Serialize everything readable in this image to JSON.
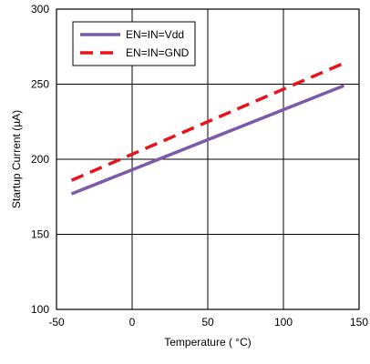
{
  "chart_data": {
    "type": "line",
    "title": "",
    "xlabel": "Temperature ( °C)",
    "ylabel": "Startup Current (µA)",
    "xlim": [
      -50,
      150
    ],
    "ylim": [
      100,
      300
    ],
    "x_ticks": [
      "-50",
      "0",
      "50",
      "100",
      "150"
    ],
    "y_ticks": [
      "100",
      "150",
      "200",
      "250",
      "300"
    ],
    "grid": true,
    "legend_position": "top-left",
    "series": [
      {
        "name": "EN=IN=Vdd",
        "color": "#7B5BA6",
        "style": "solid",
        "x": [
          -40,
          140
        ],
        "y": [
          177,
          249
        ]
      },
      {
        "name": "EN=IN=GND",
        "color": "#E8141B",
        "style": "dashed",
        "x": [
          -40,
          140
        ],
        "y": [
          186,
          264
        ]
      }
    ]
  }
}
